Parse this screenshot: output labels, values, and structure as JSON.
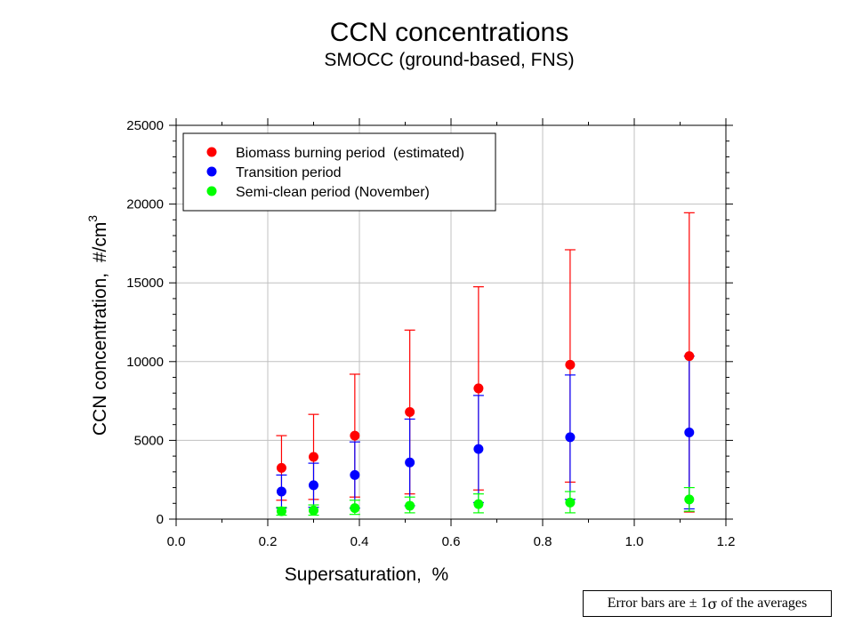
{
  "chart_data": {
    "type": "scatter",
    "title": "CCN concentrations",
    "subtitle": "SMOCC (ground-based, FNS)",
    "xlabel": "Supersaturation,  %",
    "ylabel_main": "CCN concentration,  #/cm",
    "ylabel_sup": "3",
    "xlim": [
      0.0,
      1.2
    ],
    "ylim": [
      0,
      25000
    ],
    "x_ticks": [
      "0.0",
      "0.2",
      "0.4",
      "0.6",
      "0.8",
      "1.0",
      "1.2"
    ],
    "y_ticks": [
      "0",
      "5000",
      "10000",
      "15000",
      "20000",
      "25000"
    ],
    "grid": true,
    "legend_position": "top-left",
    "x": [
      0.23,
      0.3,
      0.39,
      0.51,
      0.66,
      0.86,
      1.12
    ],
    "series": [
      {
        "name": "Biomass burning period  (estimated)",
        "color": "#ff0000",
        "values": [
          3250,
          3950,
          5300,
          6800,
          8300,
          9800,
          10350
        ],
        "err_plus": [
          2050,
          2700,
          3900,
          5200,
          6450,
          7300,
          9100
        ],
        "err_minus": [
          2050,
          2700,
          3900,
          5200,
          6450,
          7450,
          9900
        ]
      },
      {
        "name": "Transition period",
        "color": "#0000ff",
        "values": [
          1750,
          2150,
          2800,
          3600,
          4450,
          5200,
          5500
        ],
        "err_plus": [
          1050,
          1400,
          2100,
          2750,
          3400,
          3950,
          4850
        ],
        "err_minus": [
          1050,
          1400,
          2100,
          2750,
          3400,
          3950,
          4850
        ]
      },
      {
        "name": "Semi-clean period (November)",
        "color": "#00ff00",
        "values": [
          500,
          550,
          700,
          850,
          950,
          1050,
          1250
        ],
        "err_plus": [
          250,
          350,
          500,
          550,
          650,
          700,
          750
        ],
        "err_minus": [
          250,
          300,
          400,
          450,
          550,
          650,
          750
        ]
      }
    ]
  },
  "note": {
    "prefix": "Error bars are ",
    "pm": "±",
    "one": " 1",
    "sigma": "σ",
    "suffix": " of the averages"
  }
}
